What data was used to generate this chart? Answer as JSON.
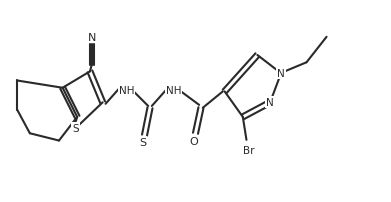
{
  "background_color": "#ffffff",
  "line_color": "#2a2a2a",
  "line_width": 1.5,
  "figsize": [
    3.91,
    2.03
  ],
  "dpi": 100,
  "xlim": [
    0,
    10.5
  ],
  "ylim": [
    0,
    5.5
  ]
}
